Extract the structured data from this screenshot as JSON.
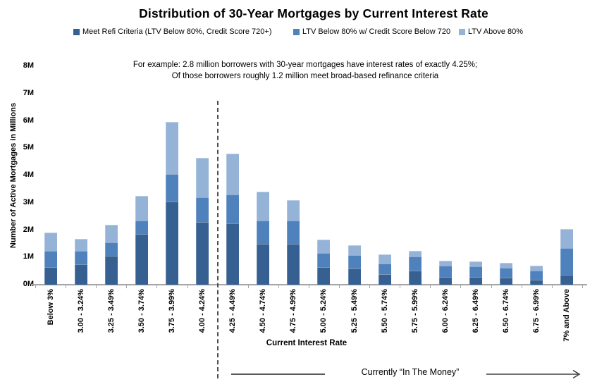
{
  "title": "Distribution of 30-Year Mortgages by Current Interest Rate",
  "legend": [
    {
      "label": "Meet Refi Criteria (LTV Below 80%, Credit Score 720+)",
      "color": "#366092"
    },
    {
      "label": "LTV Below 80% w/ Credit Score Below 720",
      "color": "#4F81BD"
    },
    {
      "label": "LTV Above 80%",
      "color": "#95B3D7"
    }
  ],
  "annotation": {
    "line1": "For example: 2.8 million borrowers with 30-year mortgages have interest rates of exactly 4.25%;",
    "line2": "Of those borrowers roughly 1.2 million meet broad-based refinance criteria"
  },
  "in_the_money_label": "Currently “In The Money”",
  "chart_data": {
    "type": "bar",
    "stacked": true,
    "title": "Distribution of 30-Year Mortgages by Current Interest Rate",
    "xlabel": "Current Interest Rate",
    "ylabel": "Number of Active Mortgages in Millions",
    "ylim": [
      0,
      8
    ],
    "y_ticks": [
      "0M",
      "1M",
      "2M",
      "3M",
      "4M",
      "5M",
      "6M",
      "7M",
      "8M"
    ],
    "grid": false,
    "legend_position": "top",
    "categories": [
      "Below 3%",
      "3.00 - 3.24%",
      "3.25 - 3.49%",
      "3.50 - 3.74%",
      "3.75 - 3.99%",
      "4.00 - 4.24%",
      "4.25 - 4.49%",
      "4.50 - 4.74%",
      "4.75 - 4.99%",
      "5.00 - 5.24%",
      "5.25 - 5.49%",
      "5.50 - 5.74%",
      "5.75 - 5.99%",
      "6.00 - 6.24%",
      "6.25 - 6.49%",
      "6.50 - 6.74%",
      "6.75 - 6.99%",
      "7% and Above"
    ],
    "series": [
      {
        "name": "Meet Refi Criteria (LTV Below 80%, Credit Score 720+)",
        "color": "#366092",
        "values": [
          0.65,
          0.75,
          1.05,
          1.85,
          3.05,
          2.3,
          2.25,
          1.5,
          1.5,
          0.65,
          0.6,
          0.4,
          0.52,
          0.28,
          0.28,
          0.26,
          0.19,
          0.35
        ]
      },
      {
        "name": "LTV Below 80% w/ Credit Score Below 720",
        "color": "#4F81BD",
        "values": [
          0.6,
          0.5,
          0.5,
          0.5,
          1.0,
          0.9,
          1.05,
          0.85,
          0.85,
          0.5,
          0.48,
          0.38,
          0.52,
          0.41,
          0.38,
          0.35,
          0.32,
          1.0
        ]
      },
      {
        "name": "LTV Above 80%",
        "color": "#95B3D7",
        "values": [
          0.65,
          0.43,
          0.65,
          0.9,
          1.9,
          1.45,
          1.5,
          1.05,
          0.75,
          0.5,
          0.37,
          0.34,
          0.21,
          0.2,
          0.19,
          0.19,
          0.18,
          0.7
        ]
      }
    ],
    "in_money_start_category": "4.25 - 4.49%",
    "totals": [
      1.9,
      1.68,
      2.2,
      3.25,
      5.95,
      4.65,
      4.8,
      3.4,
      3.1,
      1.65,
      1.45,
      1.12,
      1.25,
      0.89,
      0.85,
      0.8,
      0.69,
      2.05
    ]
  }
}
